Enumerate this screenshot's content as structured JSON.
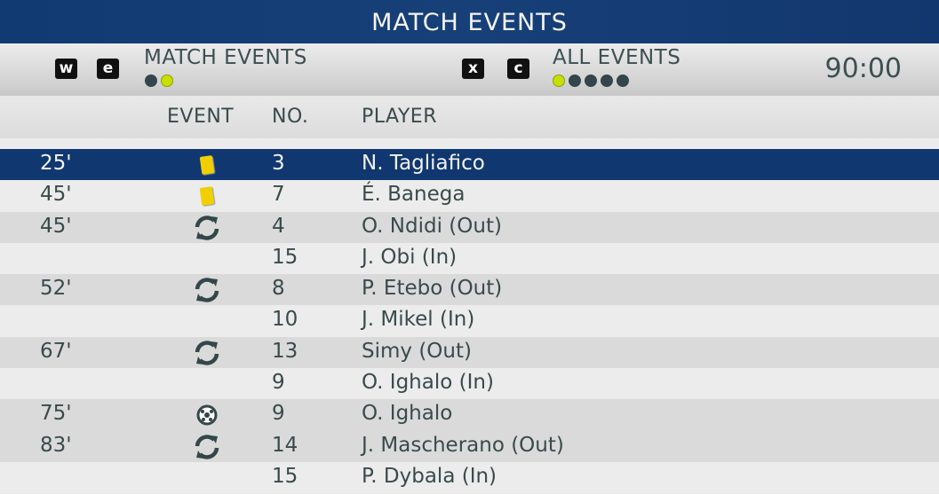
{
  "title": "MATCH EVENTS",
  "subbar": {
    "left_keys": [
      "w",
      "e"
    ],
    "left_label": "MATCH EVENTS",
    "left_dots": {
      "count": 2,
      "active": 2
    },
    "right_keys": [
      "x",
      "c"
    ],
    "right_label": "ALL EVENTS",
    "right_dots": {
      "count": 5,
      "active": 1
    },
    "clock": "90:00",
    "dot_active_color": "#c6e000"
  },
  "columns": {
    "event": "EVENT",
    "no": "NO.",
    "player": "PLAYER"
  },
  "rows": [
    {
      "minute": "25'",
      "event": "yellow-card",
      "no": "3",
      "player": "N. Tagliafico",
      "selected": true
    },
    {
      "minute": "45'",
      "event": "yellow-card",
      "no": "7",
      "player": "É. Banega"
    },
    {
      "minute": "45'",
      "event": "substitution",
      "no": "4",
      "player": "O. Ndidi (Out)"
    },
    {
      "minute": "",
      "event": "",
      "no": "15",
      "player": "J. Obi (In)"
    },
    {
      "minute": "52'",
      "event": "substitution",
      "no": "8",
      "player": "P. Etebo (Out)"
    },
    {
      "minute": "",
      "event": "",
      "no": "10",
      "player": "J. Mikel (In)"
    },
    {
      "minute": "67'",
      "event": "substitution",
      "no": "13",
      "player": "Simy (Out)"
    },
    {
      "minute": "",
      "event": "",
      "no": "9",
      "player": "O. Ighalo (In)"
    },
    {
      "minute": "75'",
      "event": "goal",
      "no": "9",
      "player": "O. Ighalo"
    },
    {
      "minute": "83'",
      "event": "substitution",
      "no": "14",
      "player": "J. Mascherano (Out)"
    },
    {
      "minute": "",
      "event": "",
      "no": "15",
      "player": "P. Dybala (In)"
    }
  ]
}
